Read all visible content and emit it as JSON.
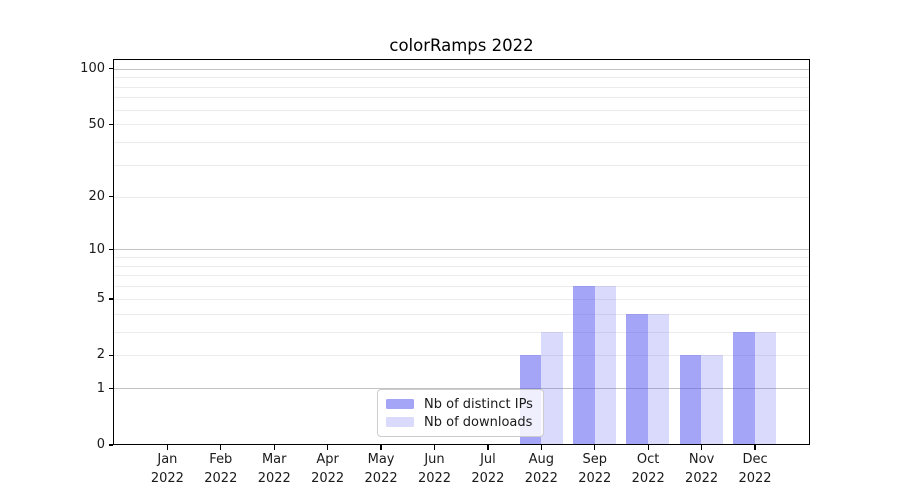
{
  "chart_data": {
    "type": "bar",
    "title": "colorRamps 2022",
    "categories": [
      "Jan 2022",
      "Feb 2022",
      "Mar 2022",
      "Apr 2022",
      "May 2022",
      "Jun 2022",
      "Jul 2022",
      "Aug 2022",
      "Sep 2022",
      "Oct 2022",
      "Nov 2022",
      "Dec 2022"
    ],
    "month_labels": [
      "Jan",
      "Feb",
      "Mar",
      "Apr",
      "May",
      "Jun",
      "Jul",
      "Aug",
      "Sep",
      "Oct",
      "Nov",
      "Dec"
    ],
    "year_label": "2022",
    "series": [
      {
        "name": "Nb of distinct IPs",
        "color": "rgba(85,85,240,0.53)",
        "values": [
          0,
          0,
          0,
          0,
          0,
          0,
          0,
          2,
          6,
          4,
          2,
          3
        ]
      },
      {
        "name": "Nb of downloads",
        "color": "rgba(85,85,240,0.22)",
        "values": [
          0,
          0,
          0,
          0,
          0,
          0,
          0,
          3,
          6,
          4,
          2,
          3
        ]
      }
    ],
    "yscale": "log1p",
    "ylim": [
      0,
      113
    ],
    "yticks": [
      0,
      1,
      2,
      5,
      10,
      20,
      50,
      100
    ],
    "grid": true,
    "grid_decade_values": [
      1,
      10,
      100
    ],
    "grid_minor_values": [
      2,
      3,
      4,
      5,
      6,
      7,
      8,
      9,
      20,
      30,
      40,
      50,
      60,
      70,
      80,
      90
    ],
    "legend": {
      "entries": [
        "Nb of distinct IPs",
        "Nb of downloads"
      ],
      "position": "lower center"
    }
  },
  "colors": {
    "bar_strong": "rgba(85,85,240,0.53)",
    "bar_light": "rgba(85,85,240,0.22)",
    "grid_decade": "#c3c3c3",
    "grid_minor": "#ececec",
    "axis": "#000000",
    "text": "#1a1a1a",
    "legend_border": "#cccccc",
    "legend_background": "rgba(255,255,255,0.82)"
  }
}
